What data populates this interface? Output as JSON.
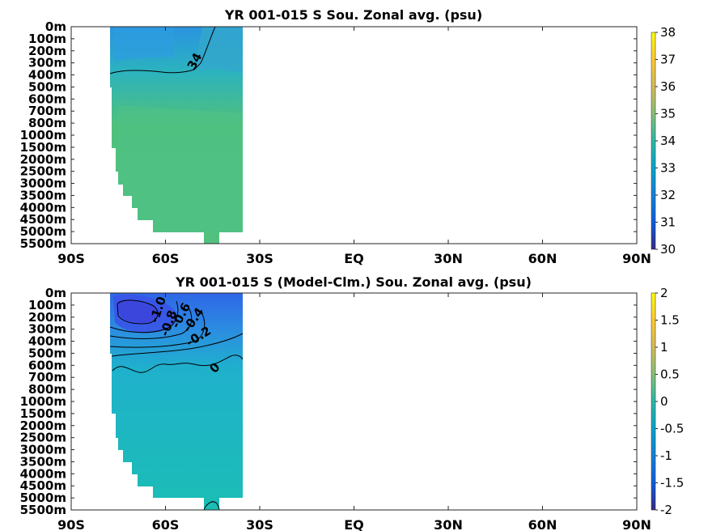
{
  "chart_data": [
    {
      "type": "heatmap",
      "title": "YR 001-015 S Sou. Zonal avg. (psu)",
      "xlabel": "",
      "ylabel": "",
      "x_ticks": [
        "90S",
        "60S",
        "30S",
        "EQ",
        "30N",
        "60N",
        "90N"
      ],
      "x_values": [
        -90,
        -60,
        -30,
        0,
        30,
        60,
        90
      ],
      "xlim": [
        -90,
        90
      ],
      "y_ticks": [
        "0m",
        "100m",
        "200m",
        "300m",
        "400m",
        "500m",
        "600m",
        "700m",
        "800m",
        "1000m",
        "1500m",
        "2000m",
        "2500m",
        "3000m",
        "3500m",
        "4000m",
        "4500m",
        "5000m",
        "5500m"
      ],
      "ylim": [
        "0m",
        "5500m"
      ],
      "colorbar": {
        "min": 30,
        "max": 38,
        "ticks": [
          "38",
          "37",
          "36",
          "35",
          "34",
          "33",
          "32",
          "31",
          "30"
        ],
        "colormap": "parula"
      },
      "data_extent": {
        "lat": [
          -78,
          -35
        ]
      },
      "contours": [
        {
          "level": "34"
        }
      ]
    },
    {
      "type": "heatmap",
      "title": "YR 001-015 S (Model-Clm.) Sou. Zonal avg. (psu)",
      "xlabel": "",
      "ylabel": "",
      "x_ticks": [
        "90S",
        "60S",
        "30S",
        "EQ",
        "30N",
        "60N",
        "90N"
      ],
      "x_values": [
        -90,
        -60,
        -30,
        0,
        30,
        60,
        90
      ],
      "xlim": [
        -90,
        90
      ],
      "y_ticks": [
        "0m",
        "100m",
        "200m",
        "300m",
        "400m",
        "500m",
        "600m",
        "700m",
        "800m",
        "1000m",
        "1500m",
        "2000m",
        "2500m",
        "3000m",
        "3500m",
        "4000m",
        "4500m",
        "5000m",
        "5500m"
      ],
      "ylim": [
        "0m",
        "5500m"
      ],
      "colorbar": {
        "min": -2,
        "max": 2,
        "ticks": [
          "2",
          "1.5",
          "1",
          "0.5",
          "0",
          "-0.5",
          "-1",
          "-1.5",
          "-2"
        ],
        "colormap": "parula"
      },
      "data_extent": {
        "lat": [
          -78,
          -35
        ]
      },
      "contours": [
        {
          "level": "-1.0"
        },
        {
          "level": "-0.8"
        },
        {
          "level": "-0.6"
        },
        {
          "level": "-0.4"
        },
        {
          "level": "-0.2"
        },
        {
          "level": "0"
        }
      ]
    }
  ]
}
